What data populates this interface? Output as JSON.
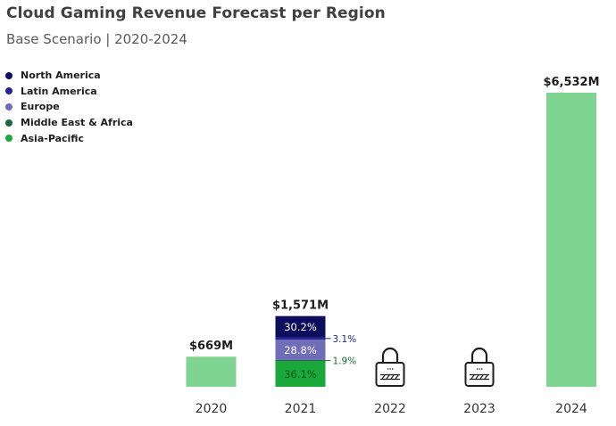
{
  "chart_data": {
    "type": "bar",
    "title": "Cloud Gaming Revenue Forecast per Region",
    "subtitle": "Base Scenario | 2020-2024",
    "xlabel": "",
    "ylabel": "",
    "legend_position": "top-left",
    "grid": false,
    "unit": "$M",
    "categories": [
      "2020",
      "2021",
      "2022",
      "2023",
      "2024"
    ],
    "values": [
      669,
      1571,
      null,
      null,
      6532
    ],
    "value_labels": [
      "$669M",
      "$1,571M",
      "",
      "",
      "$6,532M"
    ],
    "locked": [
      false,
      false,
      true,
      true,
      false
    ],
    "ylim": [
      0,
      6532
    ],
    "legend": [
      {
        "name": "North America",
        "color": "#0d0d5e"
      },
      {
        "name": "Latin America",
        "color": "#25238f"
      },
      {
        "name": "Europe",
        "color": "#6f6cb8"
      },
      {
        "name": "Middle East & Africa",
        "color": "#1a6b3c"
      },
      {
        "name": "Asia-Pacific",
        "color": "#1aa83a"
      }
    ],
    "breakdown_2021": [
      {
        "region": "North America",
        "share": 30.2,
        "label": "30.2%",
        "color": "#0d0d5e",
        "text_color": "#ffffff",
        "label_side": "inside"
      },
      {
        "region": "Latin America",
        "share": 3.1,
        "label": "3.1%",
        "color": "#25238f",
        "text_color": "#25238f",
        "label_side": "outside"
      },
      {
        "region": "Europe",
        "share": 28.8,
        "label": "28.8%",
        "color": "#6f6cb8",
        "text_color": "#ffffff",
        "label_side": "inside"
      },
      {
        "region": "Middle East & Africa",
        "share": 1.9,
        "label": "1.9%",
        "color": "#1a6b3c",
        "text_color": "#1a6b3c",
        "label_side": "outside"
      },
      {
        "region": "Asia-Pacific",
        "share": 36.1,
        "label": "36.1%",
        "color": "#1aa83a",
        "text_color": "#0f5a22",
        "label_side": "inside"
      }
    ],
    "total_bar_color": "#7fd492"
  }
}
